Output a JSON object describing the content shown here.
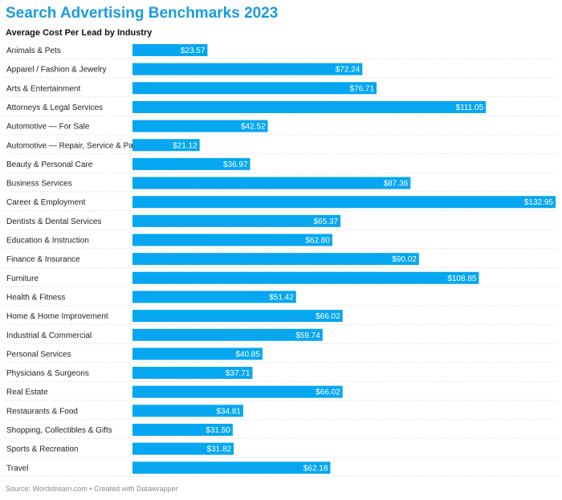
{
  "header": {
    "title": "Search Advertising Benchmarks 2023",
    "subtitle": "Average Cost Per Lead by Industry"
  },
  "footer": {
    "source": "Source: Wordstream.com • Created with Datawrapper"
  },
  "colors": {
    "title": "#1a9be0",
    "bar": "#06a7f0",
    "bar_label": "#ffffff"
  },
  "chart_data": {
    "type": "bar",
    "orientation": "horizontal",
    "title": "Search Advertising Benchmarks 2023",
    "subtitle": "Average Cost Per Lead by Industry",
    "value_prefix": "$",
    "xlim": [
      0,
      132.95
    ],
    "grid": false,
    "categories": [
      "Animals & Pets",
      "Apparel / Fashion & Jewelry",
      "Arts & Entertainment",
      "Attorneys & Legal Services",
      "Automotive — For Sale",
      "Automotive — Repair, Service & Parts",
      "Beauty & Personal Care",
      "Business Services",
      "Career & Employment",
      "Dentists & Dental Services",
      "Education & Instruction",
      "Finance & Insurance",
      "Furniture",
      "Health & Fitness",
      "Home & Home Improvement",
      "Industrial & Commercial",
      "Personal Services",
      "Physicians & Surgeons",
      "Real Estate",
      "Restaurants & Food",
      "Shopping, Collectibles & Gifts",
      "Sports & Recreation",
      "Travel"
    ],
    "values": [
      23.57,
      72.24,
      76.71,
      111.05,
      42.52,
      21.12,
      36.97,
      87.36,
      132.95,
      65.37,
      62.8,
      90.02,
      108.85,
      51.42,
      66.02,
      59.74,
      40.85,
      37.71,
      66.02,
      34.81,
      31.5,
      31.82,
      62.18
    ],
    "value_labels": [
      "$23.57",
      "$72.24",
      "$76.71",
      "$111.05",
      "$42.52",
      "$21.12",
      "$36.97",
      "$87.36",
      "$132.95",
      "$65.37",
      "$62.80",
      "$90.02",
      "$108.85",
      "$51.42",
      "$66.02",
      "$59.74",
      "$40.85",
      "$37.71",
      "$66.02",
      "$34.81",
      "$31.50",
      "$31.82",
      "$62.18"
    ]
  }
}
